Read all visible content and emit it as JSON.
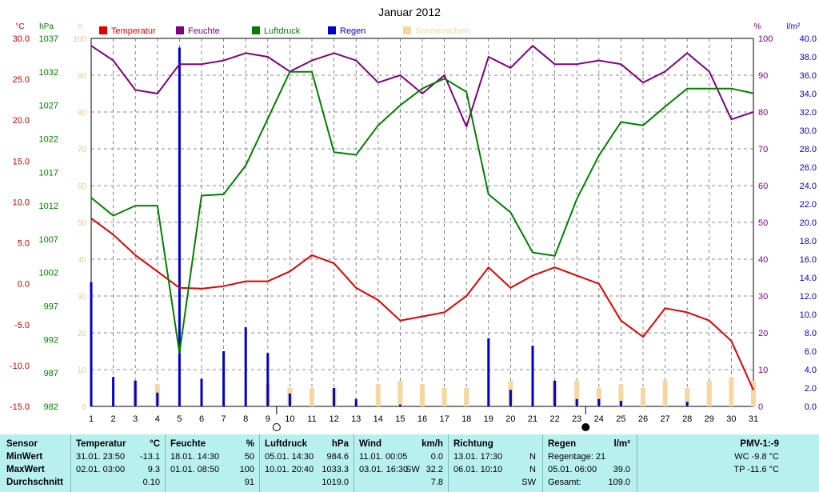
{
  "chart_data": {
    "type": "line",
    "title": "Januar 2012",
    "x": [
      1,
      2,
      3,
      4,
      5,
      6,
      7,
      8,
      9,
      10,
      11,
      12,
      13,
      14,
      15,
      16,
      17,
      18,
      19,
      20,
      21,
      22,
      23,
      24,
      25,
      26,
      27,
      28,
      29,
      30,
      31
    ],
    "y_axes": {
      "temperature": {
        "unit": "°C",
        "range": [
          -15,
          30
        ],
        "ticks": [
          "30.0",
          "25.0",
          "20.0",
          "15.0",
          "10.0",
          "5.0",
          "0.0",
          "-5.0",
          "-10.0",
          "-15.0"
        ],
        "color": "#cc0000"
      },
      "pressure": {
        "unit": "hPa",
        "range": [
          982,
          1037
        ],
        "ticks": [
          "1037",
          "1032",
          "1027",
          "1022",
          "1017",
          "1012",
          "1007",
          "1002",
          "997",
          "992",
          "987",
          "982"
        ],
        "color": "#008000"
      },
      "sunshine": {
        "unit": "h",
        "range": [
          0,
          100
        ],
        "ticks": [
          "100",
          "90",
          "80",
          "70",
          "60",
          "50",
          "40",
          "30",
          "20",
          "10",
          "0"
        ],
        "color": "#f5d7a0"
      },
      "humidity": {
        "unit": "%",
        "range": [
          0,
          100
        ],
        "ticks": [
          "100",
          "90",
          "80",
          "70",
          "60",
          "50",
          "40",
          "30",
          "20",
          "10",
          "0"
        ],
        "color": "#800080"
      },
      "rain": {
        "unit": "l/m²",
        "range": [
          0,
          40
        ],
        "ticks": [
          "40.0",
          "38.0",
          "36.0",
          "34.0",
          "32.0",
          "30.0",
          "28.0",
          "26.0",
          "24.0",
          "22.0",
          "20.0",
          "18.0",
          "16.0",
          "14.0",
          "12.0",
          "10.0",
          "8.0",
          "6.0",
          "4.0",
          "2.0",
          "0.0"
        ],
        "color": "#0000cc"
      }
    },
    "legend": [
      {
        "label": "Temperatur",
        "color": "#e00000"
      },
      {
        "label": "Feuchte",
        "color": "#800080"
      },
      {
        "label": "Luftdruck",
        "color": "#008000"
      },
      {
        "label": "Regen",
        "color": "#0000cc"
      },
      {
        "label": "Sonnenschein",
        "color": "#f5d7a0"
      }
    ],
    "series": [
      {
        "name": "Temperatur",
        "axis": "temperature",
        "color": "#e00000",
        "values": [
          8.0,
          6.0,
          3.5,
          1.5,
          -0.5,
          -0.6,
          -0.3,
          0.3,
          0.3,
          1.5,
          3.5,
          2.5,
          -0.5,
          -2.0,
          -4.5,
          -4.0,
          -3.5,
          -1.5,
          2.0,
          -0.5,
          1.0,
          2.0,
          1.0,
          0.0,
          -4.5,
          -6.5,
          -3.0,
          -3.5,
          -4.5,
          -7.0,
          -13.0
        ]
      },
      {
        "name": "Feuchte",
        "axis": "humidity",
        "color": "#800080",
        "values": [
          98,
          94,
          86,
          85,
          93,
          93,
          94,
          96,
          95,
          91,
          94,
          96,
          94,
          88,
          90,
          85,
          90,
          76,
          95,
          92,
          98,
          93,
          93,
          94,
          93,
          88,
          91,
          96,
          91,
          78,
          80
        ]
      },
      {
        "name": "Luftdruck",
        "axis": "pressure",
        "color": "#008000",
        "values": [
          1013.2,
          1010.5,
          1012.0,
          1012.0,
          990.0,
          1013.5,
          1013.7,
          1018.0,
          1025.0,
          1032.0,
          1032.0,
          1020.0,
          1019.6,
          1024.0,
          1027.0,
          1029.5,
          1031.0,
          1029.0,
          1013.7,
          1011.0,
          1005.0,
          1004.5,
          1013.0,
          1019.5,
          1024.5,
          1024.0,
          1026.8,
          1029.5,
          1029.5,
          1029.5,
          1028.8
        ]
      },
      {
        "name": "Regen",
        "axis": "rain",
        "color": "#0000cc",
        "style": "bars",
        "values": [
          13.5,
          3.2,
          2.8,
          1.5,
          39.0,
          3.0,
          6.0,
          8.6,
          5.8,
          1.4,
          0.0,
          2.0,
          0.8,
          0.0,
          0.2,
          0.0,
          0.0,
          0.0,
          7.4,
          1.8,
          6.6,
          2.8,
          0.8,
          0.8,
          0.6,
          0.0,
          0.0,
          0.5,
          0.0,
          0.0,
          0.0
        ]
      },
      {
        "name": "Sonnenschein",
        "axis": "sunshine",
        "color": "#f5d7a0",
        "style": "bars",
        "values": [
          0,
          0,
          7,
          6,
          0,
          0,
          0,
          0,
          6,
          5,
          5,
          5,
          0,
          6,
          7,
          6,
          5,
          5,
          0,
          7,
          0,
          7,
          7,
          5,
          6,
          5,
          7,
          5,
          7,
          8,
          7
        ]
      }
    ],
    "moon_markers": [
      {
        "day": 9.4,
        "phase": "full"
      },
      {
        "day": 23.4,
        "phase": "new"
      }
    ]
  },
  "table": {
    "row_labels": [
      "Sensor",
      "MinWert",
      "MaxWert",
      "Durchschnitt"
    ],
    "columns": [
      {
        "title": "Temperatur",
        "unit": "°C",
        "min_time": "31.01.  23:50",
        "min_value": "-13.1",
        "max_time": "02.01.  03:00",
        "max_value": "9.3",
        "avg": "0.10"
      },
      {
        "title": "Feuchte",
        "unit": "%",
        "min_time": "18.01.  14:30",
        "min_value": "50",
        "max_time": "01.01.  08:50",
        "max_value": "100",
        "avg": "91"
      },
      {
        "title": "Luftdruck",
        "unit": "hPa",
        "min_time": "05.01.  14:30",
        "min_value": "984.6",
        "max_time": "10.01.  20:40",
        "max_value": "1033.3",
        "avg": "1019.0"
      },
      {
        "title": "Wind",
        "unit": "km/h",
        "min_time": "11.01.  00:05",
        "min_value": "0.0",
        "max_time": "03.01.  16:30",
        "max_value": "32.2",
        "avg": "7.8"
      },
      {
        "title": "Richtung",
        "unit": "",
        "min_time": "13.01.  17:30",
        "min_value": "N",
        "max_time": "06.01.  10:10",
        "max_value": "N",
        "avg": "SW"
      }
    ],
    "wind_max_dir": "SW",
    "rain": {
      "title": "Regen",
      "unit": "l/m²",
      "days": "Regentage: 21",
      "max_time": "05.01.  06:00",
      "max_value": "39.0",
      "total": "Gesamt:",
      "total_value": "109.0"
    },
    "pmv": {
      "title": "PMV-1:-9",
      "wc": "WC -9.8 °C",
      "tp": "TP -11.6 °C"
    }
  }
}
